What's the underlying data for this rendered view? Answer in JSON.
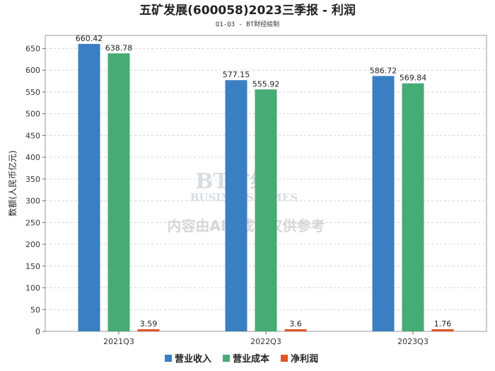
{
  "chart_data": {
    "type": "bar",
    "title": "五矿发展(600058)2023三季报 - 利润",
    "subtitle": "Q1-Q3 - BT财经绘制",
    "ylabel": "数额(人民币亿元)",
    "xlabel": "",
    "ylim": [
      0,
      680
    ],
    "yticks": [
      0,
      50,
      100,
      150,
      200,
      250,
      300,
      350,
      400,
      450,
      500,
      550,
      600,
      650
    ],
    "categories": [
      "2021Q3",
      "2022Q3",
      "2023Q3"
    ],
    "series": [
      {
        "name": "营业收入",
        "color": "#3a7fc1",
        "values": [
          660.42,
          577.15,
          586.72
        ],
        "labels": [
          "660.42",
          "577.15",
          "586.72"
        ]
      },
      {
        "name": "营业成本",
        "color": "#46ab74",
        "values": [
          638.78,
          555.92,
          569.84
        ],
        "labels": [
          "638.78",
          "555.92",
          "569.84"
        ]
      },
      {
        "name": "净利润",
        "color": "#e0562a",
        "values": [
          3.59,
          3.6,
          1.76
        ],
        "labels": [
          "3.59",
          "3.6",
          "1.76"
        ]
      }
    ],
    "legend_position": "bottom"
  },
  "watermark": {
    "logo": "BT财经",
    "sub": "BUSINESS TIMES",
    "note": "内容由AI生成，仅供参考"
  }
}
